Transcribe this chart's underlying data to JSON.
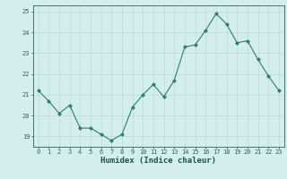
{
  "x": [
    0,
    1,
    2,
    3,
    4,
    5,
    6,
    7,
    8,
    9,
    10,
    11,
    12,
    13,
    14,
    15,
    16,
    17,
    18,
    19,
    20,
    21,
    22,
    23
  ],
  "y": [
    21.2,
    20.7,
    20.1,
    20.5,
    19.4,
    19.4,
    19.1,
    18.8,
    19.1,
    20.4,
    21.0,
    21.5,
    20.9,
    21.7,
    23.3,
    23.4,
    24.1,
    24.9,
    24.4,
    23.5,
    23.6,
    22.7,
    21.9,
    21.2
  ],
  "line_color": "#2e7d6e",
  "marker": "D",
  "marker_size": 2.0,
  "bg_color": "#d4eeee",
  "grid_color": "#b8d4d4",
  "xlabel": "Humidex (Indice chaleur)",
  "xlim": [
    -0.5,
    23.5
  ],
  "ylim": [
    18.5,
    25.3
  ],
  "yticks": [
    19,
    20,
    21,
    22,
    23,
    24,
    25
  ],
  "xticks": [
    0,
    1,
    2,
    3,
    4,
    5,
    6,
    7,
    8,
    9,
    10,
    11,
    12,
    13,
    14,
    15,
    16,
    17,
    18,
    19,
    20,
    21,
    22,
    23
  ],
  "tick_color": "#2e6060",
  "label_color": "#1a5050",
  "axis_color": "#2e6060",
  "tick_fontsize": 5.0,
  "xlabel_fontsize": 6.5,
  "linewidth": 0.8
}
